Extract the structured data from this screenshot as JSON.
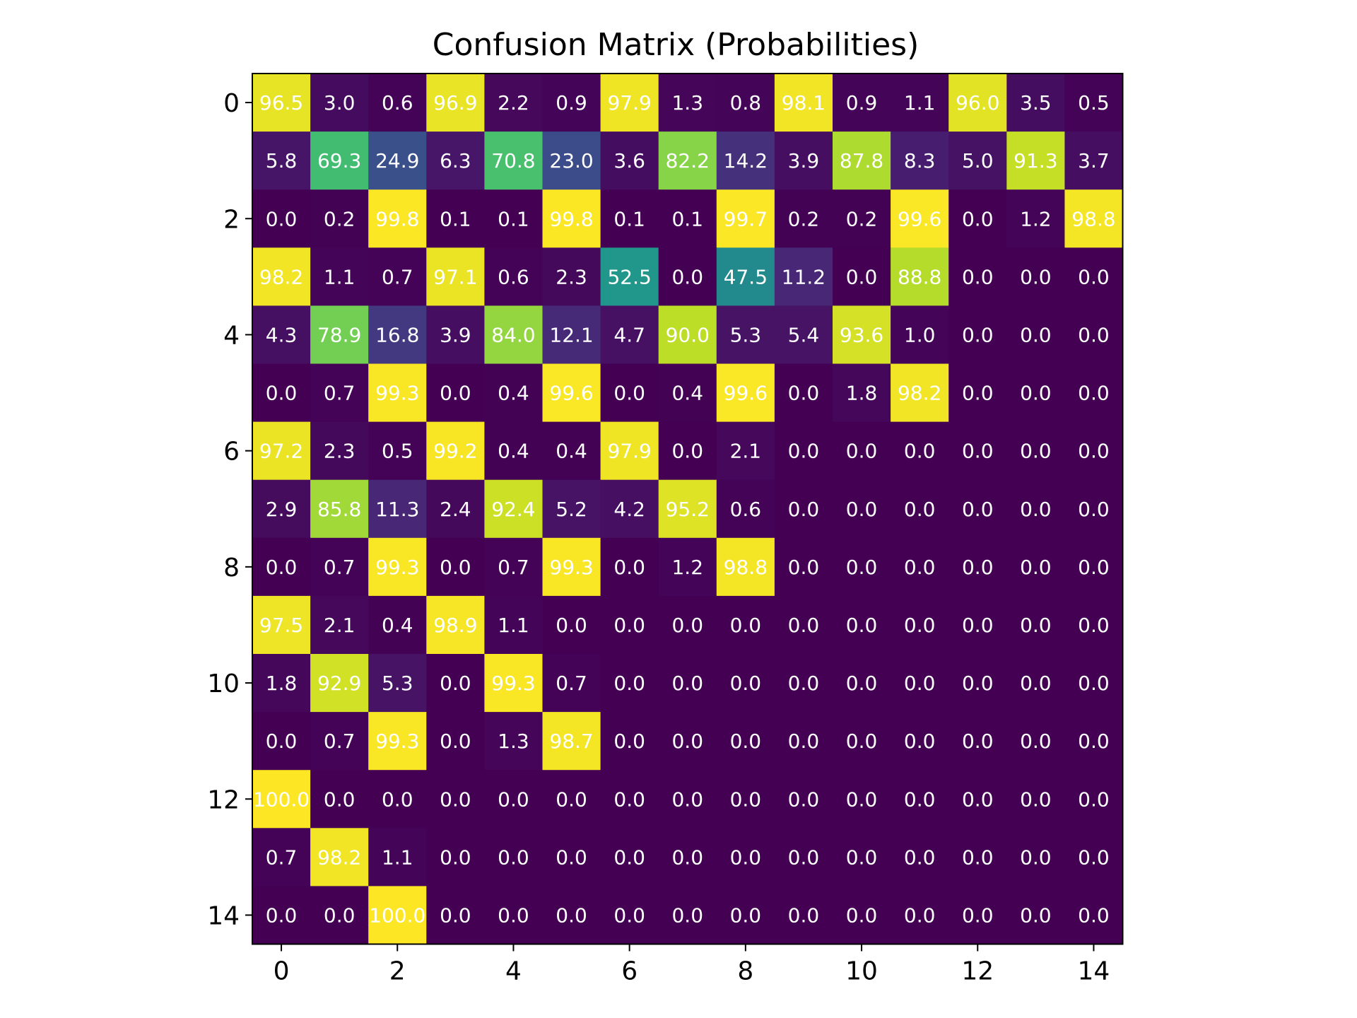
{
  "chart_data": {
    "type": "heatmap",
    "title": "Confusion Matrix (Probabilities)",
    "xlabel": "",
    "ylabel": "",
    "colormap": "viridis",
    "vmin": 0,
    "vmax": 100,
    "x_ticks": [
      "0",
      "2",
      "4",
      "6",
      "8",
      "10",
      "12",
      "14"
    ],
    "y_ticks": [
      "0",
      "2",
      "4",
      "6",
      "8",
      "10",
      "12",
      "14"
    ],
    "grid": false,
    "matrix": [
      [
        96.5,
        3.0,
        0.6,
        96.9,
        2.2,
        0.9,
        97.9,
        1.3,
        0.8,
        98.1,
        0.9,
        1.1,
        96.0,
        3.5,
        0.5
      ],
      [
        5.8,
        69.3,
        24.9,
        6.3,
        70.8,
        23.0,
        3.6,
        82.2,
        14.2,
        3.9,
        87.8,
        8.3,
        5.0,
        91.3,
        3.7
      ],
      [
        0.0,
        0.2,
        99.8,
        0.1,
        0.1,
        99.8,
        0.1,
        0.1,
        99.7,
        0.2,
        0.2,
        99.6,
        0.0,
        1.2,
        98.8
      ],
      [
        98.2,
        1.1,
        0.7,
        97.1,
        0.6,
        2.3,
        52.5,
        0.0,
        47.5,
        11.2,
        0.0,
        88.8,
        0.0,
        0.0,
        0.0
      ],
      [
        4.3,
        78.9,
        16.8,
        3.9,
        84.0,
        12.1,
        4.7,
        90.0,
        5.3,
        5.4,
        93.6,
        1.0,
        0.0,
        0.0,
        0.0
      ],
      [
        0.0,
        0.7,
        99.3,
        0.0,
        0.4,
        99.6,
        0.0,
        0.4,
        99.6,
        0.0,
        1.8,
        98.2,
        0.0,
        0.0,
        0.0
      ],
      [
        97.2,
        2.3,
        0.5,
        99.2,
        0.4,
        0.4,
        97.9,
        0.0,
        2.1,
        0.0,
        0.0,
        0.0,
        0.0,
        0.0,
        0.0
      ],
      [
        2.9,
        85.8,
        11.3,
        2.4,
        92.4,
        5.2,
        4.2,
        95.2,
        0.6,
        0.0,
        0.0,
        0.0,
        0.0,
        0.0,
        0.0
      ],
      [
        0.0,
        0.7,
        99.3,
        0.0,
        0.7,
        99.3,
        0.0,
        1.2,
        98.8,
        0.0,
        0.0,
        0.0,
        0.0,
        0.0,
        0.0
      ],
      [
        97.5,
        2.1,
        0.4,
        98.9,
        1.1,
        0.0,
        0.0,
        0.0,
        0.0,
        0.0,
        0.0,
        0.0,
        0.0,
        0.0,
        0.0
      ],
      [
        1.8,
        92.9,
        5.3,
        0.0,
        99.3,
        0.7,
        0.0,
        0.0,
        0.0,
        0.0,
        0.0,
        0.0,
        0.0,
        0.0,
        0.0
      ],
      [
        0.0,
        0.7,
        99.3,
        0.0,
        1.3,
        98.7,
        0.0,
        0.0,
        0.0,
        0.0,
        0.0,
        0.0,
        0.0,
        0.0,
        0.0
      ],
      [
        100.0,
        0.0,
        0.0,
        0.0,
        0.0,
        0.0,
        0.0,
        0.0,
        0.0,
        0.0,
        0.0,
        0.0,
        0.0,
        0.0,
        0.0
      ],
      [
        0.7,
        98.2,
        1.1,
        0.0,
        0.0,
        0.0,
        0.0,
        0.0,
        0.0,
        0.0,
        0.0,
        0.0,
        0.0,
        0.0,
        0.0
      ],
      [
        0.0,
        0.0,
        100.0,
        0.0,
        0.0,
        0.0,
        0.0,
        0.0,
        0.0,
        0.0,
        0.0,
        0.0,
        0.0,
        0.0,
        0.0
      ]
    ]
  }
}
